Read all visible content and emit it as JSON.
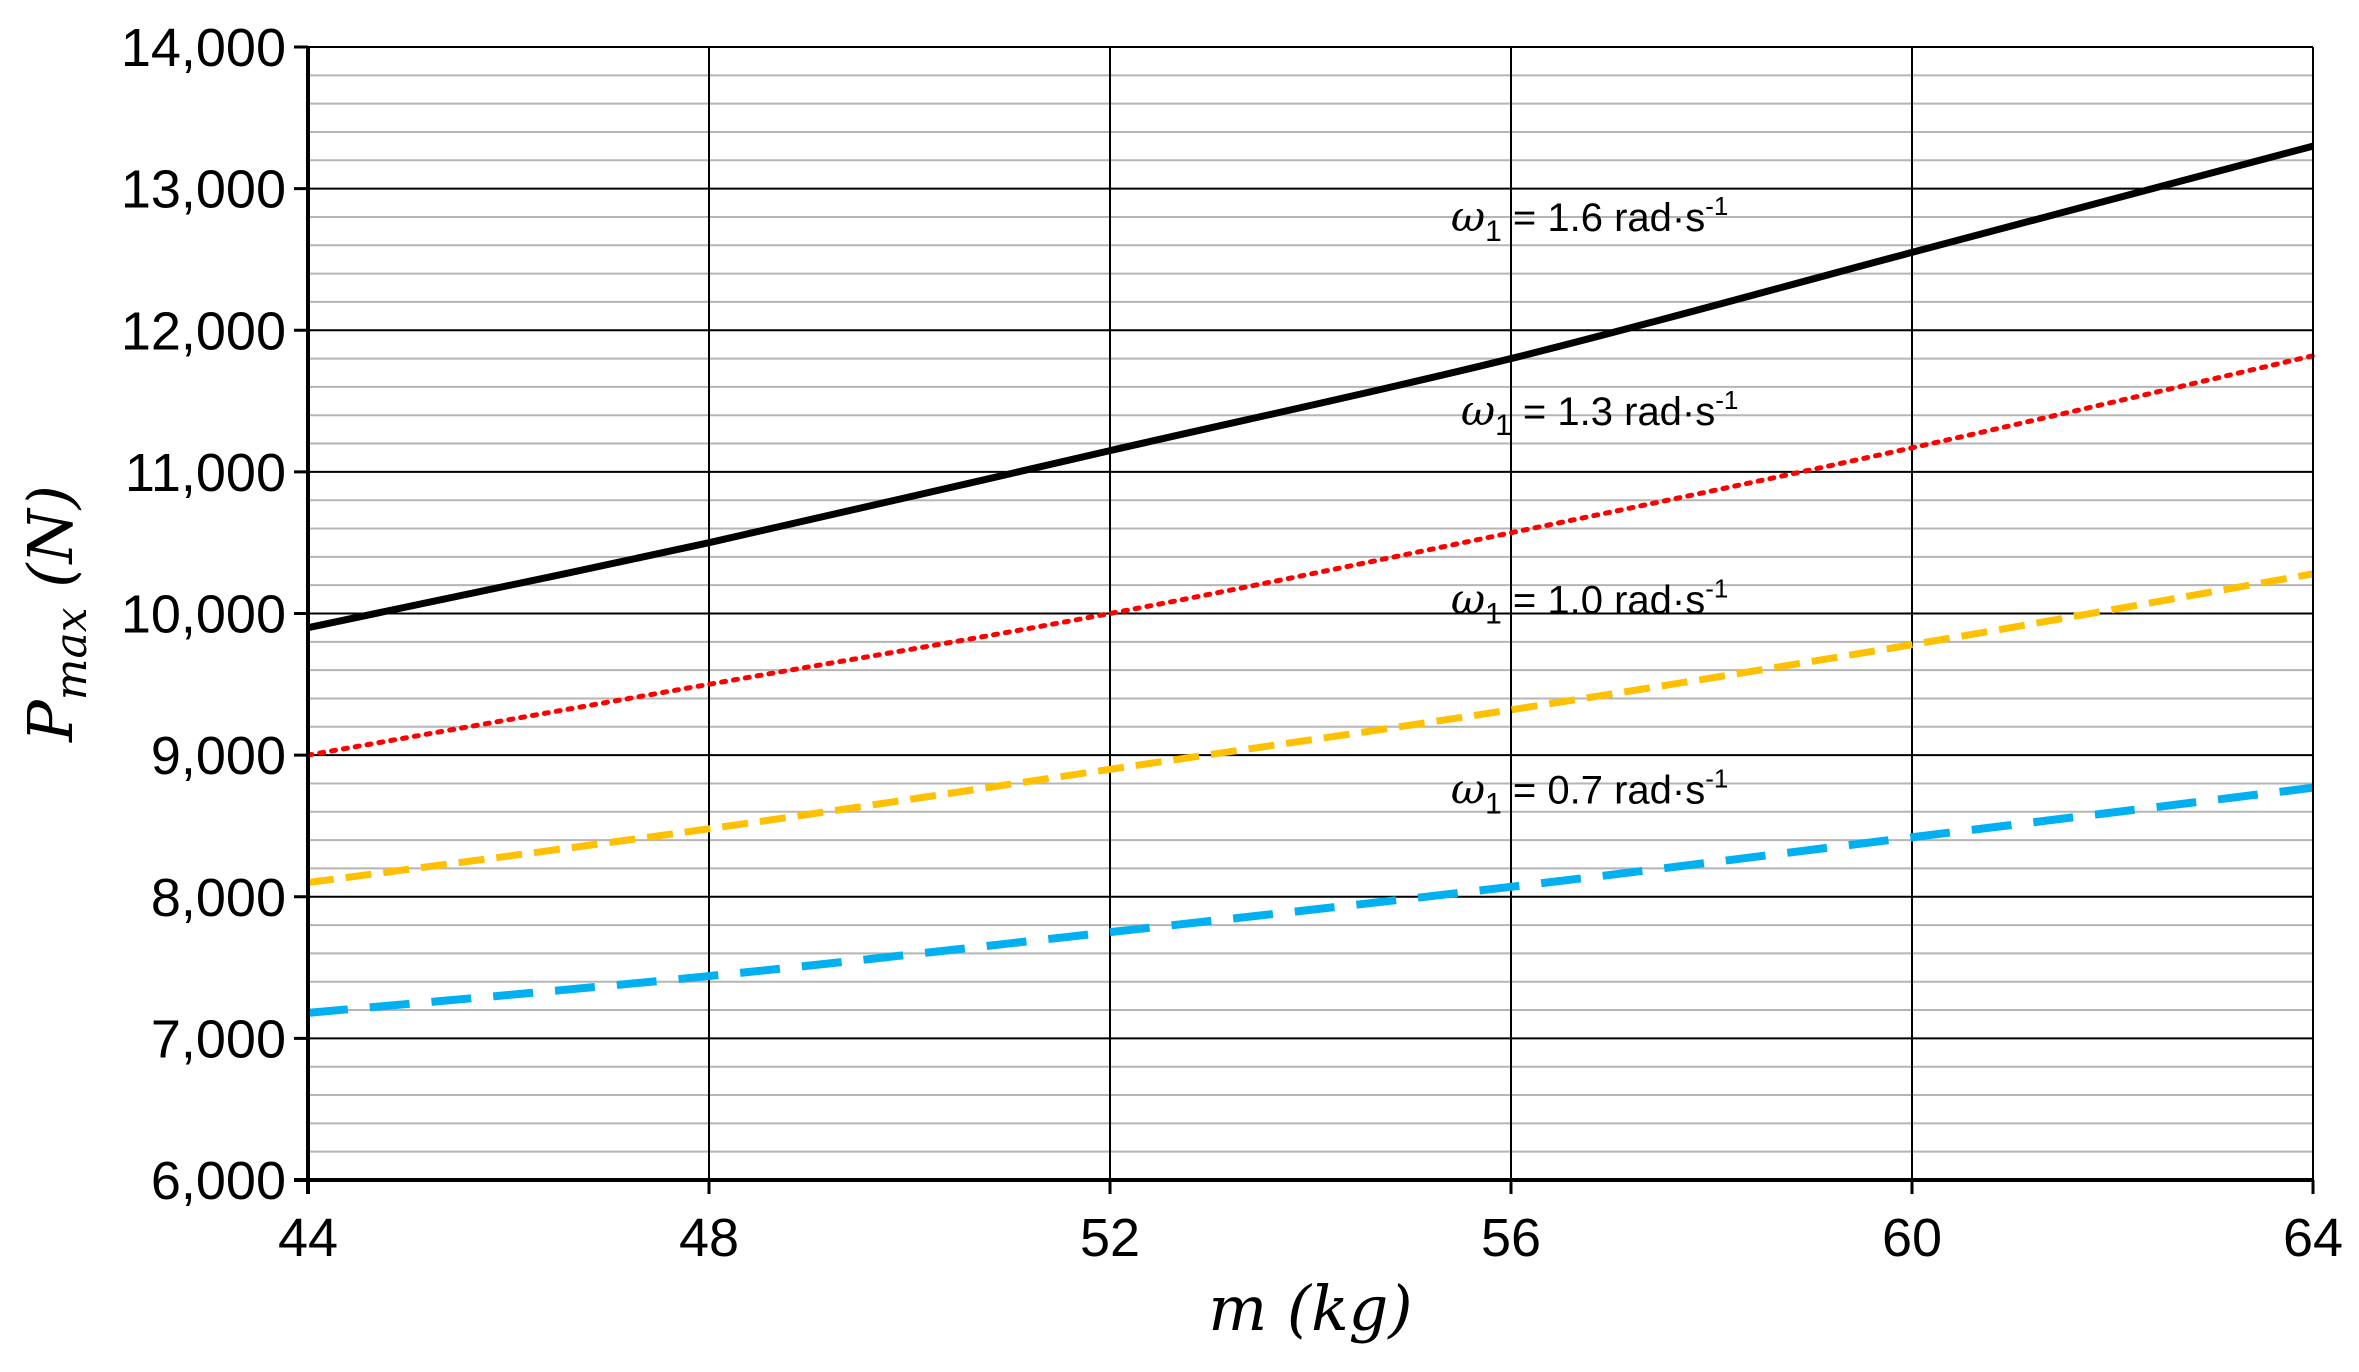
{
  "chart_data": {
    "type": "line",
    "title": "",
    "xlabel": "m (kg)",
    "ylabel": "Pmax (N)",
    "ylabel_parts": {
      "symbol": "P",
      "subscript": "max",
      "unit": "(N)"
    },
    "xlim": [
      44,
      64
    ],
    "ylim": [
      6000,
      14000
    ],
    "x_ticks": [
      44,
      48,
      52,
      56,
      60,
      64
    ],
    "x_tick_labels": [
      "44",
      "48",
      "52",
      "56",
      "60",
      "64"
    ],
    "y_ticks": [
      6000,
      7000,
      8000,
      9000,
      10000,
      11000,
      12000,
      13000,
      14000
    ],
    "y_tick_labels": [
      "6,000",
      "7,000",
      "8,000",
      "9,000",
      "10,000",
      "11,000",
      "12,000",
      "13,000",
      "14,000"
    ],
    "grid": {
      "major": true,
      "minor_y": true,
      "minor_y_step": 200
    },
    "legend": "inline labels",
    "x": [
      44,
      48,
      52,
      56,
      60,
      64
    ],
    "series": [
      {
        "name": "ω1 = 1.6 rad·s-1",
        "label_parts": {
          "symbol": "ω",
          "subscript": "1",
          "text": " = 1.6 rad·s",
          "superscript": "-1"
        },
        "values": [
          9900,
          10500,
          11150,
          11800,
          12550,
          13300
        ],
        "color": "#000000",
        "style": "solid"
      },
      {
        "name": "ω1 = 1.3 rad·s-1",
        "label_parts": {
          "symbol": "ω",
          "subscript": "1",
          "text": " = 1.3 rad·s",
          "superscript": "-1"
        },
        "values": [
          9000,
          9500,
          10000,
          10570,
          11170,
          11820
        ],
        "color": "#ff0000",
        "style": "dotted"
      },
      {
        "name": "ω1 = 1.0 rad·s-1",
        "label_parts": {
          "symbol": "ω",
          "subscript": "1",
          "text": " = 1.0 rad·s",
          "superscript": "-1"
        },
        "values": [
          8100,
          8480,
          8900,
          9320,
          9780,
          10280
        ],
        "color": "#ffc000",
        "style": "dashed"
      },
      {
        "name": "ω1 = 0.7 rad·s-1",
        "label_parts": {
          "symbol": "ω",
          "subscript": "1",
          "text": " = 0.7 rad·s",
          "superscript": "-1"
        },
        "values": [
          7180,
          7440,
          7750,
          8070,
          8420,
          8770
        ],
        "color": "#00b0f0",
        "style": "long-dashed"
      }
    ]
  }
}
